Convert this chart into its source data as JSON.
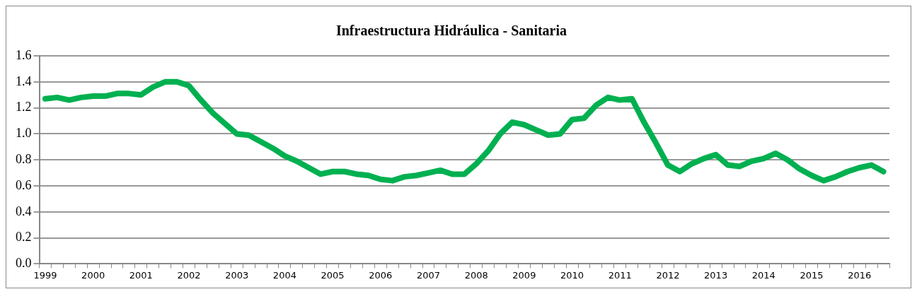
{
  "chart_data": {
    "type": "line",
    "title": "Infraestructura Hidráulica - Sanitaria",
    "categories": [
      "1999",
      null,
      null,
      null,
      "2000",
      null,
      null,
      null,
      "2001",
      null,
      null,
      null,
      "2002",
      null,
      null,
      null,
      "2003",
      null,
      null,
      null,
      "2004",
      null,
      null,
      null,
      "2005",
      null,
      null,
      null,
      "2006",
      null,
      null,
      null,
      "2007",
      null,
      null,
      null,
      "2008",
      null,
      null,
      null,
      "2009",
      null,
      null,
      null,
      "2010",
      null,
      null,
      null,
      "2011",
      null,
      null,
      null,
      "2012",
      null,
      null,
      null,
      "2013",
      null,
      null,
      null,
      "2014",
      null,
      null,
      null,
      "2015",
      null,
      null,
      null,
      "2016",
      null,
      null
    ],
    "series": [
      {
        "color": "#00b050",
        "values": [
          1.27,
          1.28,
          1.26,
          1.28,
          1.29,
          1.29,
          1.31,
          1.31,
          1.3,
          1.36,
          1.4,
          1.4,
          1.37,
          1.26,
          1.16,
          1.08,
          1.0,
          0.99,
          0.94,
          0.89,
          0.83,
          0.79,
          0.74,
          0.69,
          0.71,
          0.71,
          0.69,
          0.68,
          0.65,
          0.64,
          0.67,
          0.68,
          0.7,
          0.72,
          0.69,
          0.69,
          0.77,
          0.87,
          1.0,
          1.09,
          1.07,
          1.03,
          0.99,
          1.0,
          1.11,
          1.12,
          1.22,
          1.28,
          1.26,
          1.27,
          1.09,
          0.93,
          0.76,
          0.71,
          0.77,
          0.81,
          0.84,
          0.76,
          0.75,
          0.79,
          0.81,
          0.85,
          0.8,
          0.73,
          0.68,
          0.64,
          0.67,
          0.71,
          0.74,
          0.76,
          0.71
        ]
      }
    ],
    "ylim": [
      0,
      1.6
    ],
    "yticks": [
      {
        "value": 0,
        "label": "0.0"
      },
      {
        "value": 0.2,
        "label": "0.2"
      },
      {
        "value": 0.4,
        "label": "0.4"
      },
      {
        "value": 0.6,
        "label": "0.6"
      },
      {
        "value": 0.8,
        "label": "0.8"
      },
      {
        "value": 1,
        "label": "1.0"
      },
      {
        "value": 1.2,
        "label": "1.2"
      },
      {
        "value": 1.4,
        "label": "1.4"
      },
      {
        "value": 1.6,
        "label": "1.6"
      }
    ],
    "grid": "y",
    "legend": false,
    "marker": "none",
    "line_style": "solid"
  }
}
